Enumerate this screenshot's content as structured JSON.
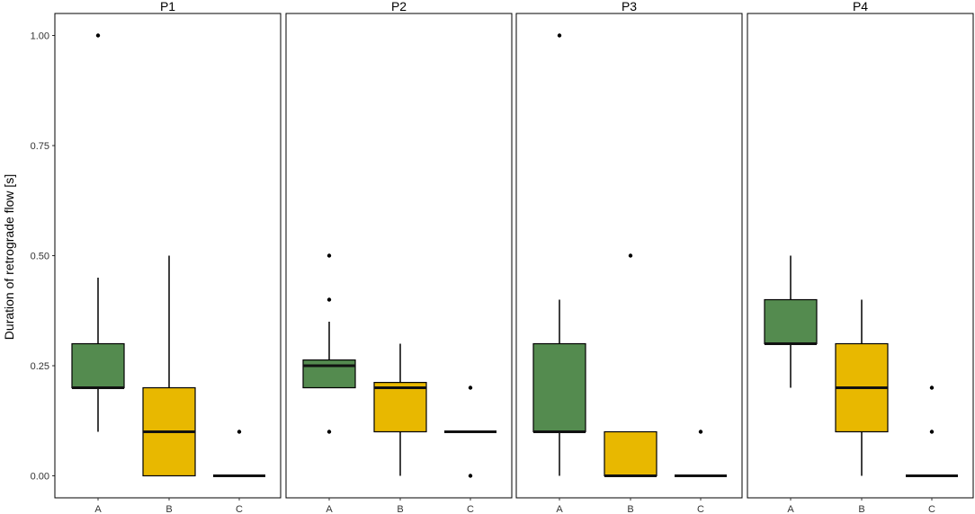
{
  "chart_data": {
    "type": "box",
    "ylabel": "Duration of retrograde flow [s]",
    "xlabel": "",
    "ylim": [
      -0.05,
      1.05
    ],
    "yticks": [
      0.0,
      0.25,
      0.5,
      0.75,
      1.0
    ],
    "ytick_labels": [
      "0.00",
      "0.25",
      "0.50",
      "0.75",
      "1.00"
    ],
    "categories": [
      "A",
      "B",
      "C"
    ],
    "colors": {
      "A": "#548b4f",
      "B": "#e8b800",
      "C": "#ffffff"
    },
    "panels": [
      {
        "name": "P1",
        "boxes": [
          {
            "category": "A",
            "whisker_low": 0.1,
            "q1": 0.2,
            "median": 0.2,
            "q3": 0.3,
            "whisker_high": 0.45,
            "outliers": [
              1.0
            ]
          },
          {
            "category": "B",
            "whisker_low": 0.0,
            "q1": 0.0,
            "median": 0.1,
            "q3": 0.2,
            "whisker_high": 0.5,
            "outliers": []
          },
          {
            "category": "C",
            "whisker_low": 0.0,
            "q1": 0.0,
            "median": 0.0,
            "q3": 0.0,
            "whisker_high": 0.0,
            "outliers": [
              0.1
            ]
          }
        ]
      },
      {
        "name": "P2",
        "boxes": [
          {
            "category": "A",
            "whisker_low": 0.2,
            "q1": 0.2,
            "median": 0.25,
            "q3": 0.263,
            "whisker_high": 0.35,
            "outliers": [
              0.1,
              0.4,
              0.5
            ]
          },
          {
            "category": "B",
            "whisker_low": 0.0,
            "q1": 0.1,
            "median": 0.2,
            "q3": 0.212,
            "whisker_high": 0.3,
            "outliers": []
          },
          {
            "category": "C",
            "whisker_low": 0.1,
            "q1": 0.1,
            "median": 0.1,
            "q3": 0.1,
            "whisker_high": 0.1,
            "outliers": [
              0.0,
              0.2
            ]
          }
        ]
      },
      {
        "name": "P3",
        "boxes": [
          {
            "category": "A",
            "whisker_low": 0.0,
            "q1": 0.1,
            "median": 0.1,
            "q3": 0.3,
            "whisker_high": 0.4,
            "outliers": [
              1.0
            ]
          },
          {
            "category": "B",
            "whisker_low": 0.0,
            "q1": 0.0,
            "median": 0.0,
            "q3": 0.1,
            "whisker_high": 0.1,
            "outliers": [
              0.5
            ]
          },
          {
            "category": "C",
            "whisker_low": 0.0,
            "q1": 0.0,
            "median": 0.0,
            "q3": 0.0,
            "whisker_high": 0.0,
            "outliers": [
              0.1
            ]
          }
        ]
      },
      {
        "name": "P4",
        "boxes": [
          {
            "category": "A",
            "whisker_low": 0.2,
            "q1": 0.3,
            "median": 0.3,
            "q3": 0.4,
            "whisker_high": 0.5,
            "outliers": []
          },
          {
            "category": "B",
            "whisker_low": 0.0,
            "q1": 0.1,
            "median": 0.2,
            "q3": 0.3,
            "whisker_high": 0.4,
            "outliers": []
          },
          {
            "category": "C",
            "whisker_low": 0.0,
            "q1": 0.0,
            "median": 0.0,
            "q3": 0.0,
            "whisker_high": 0.0,
            "outliers": [
              0.1,
              0.2
            ]
          }
        ]
      }
    ],
    "grid": false,
    "legend": "none"
  }
}
